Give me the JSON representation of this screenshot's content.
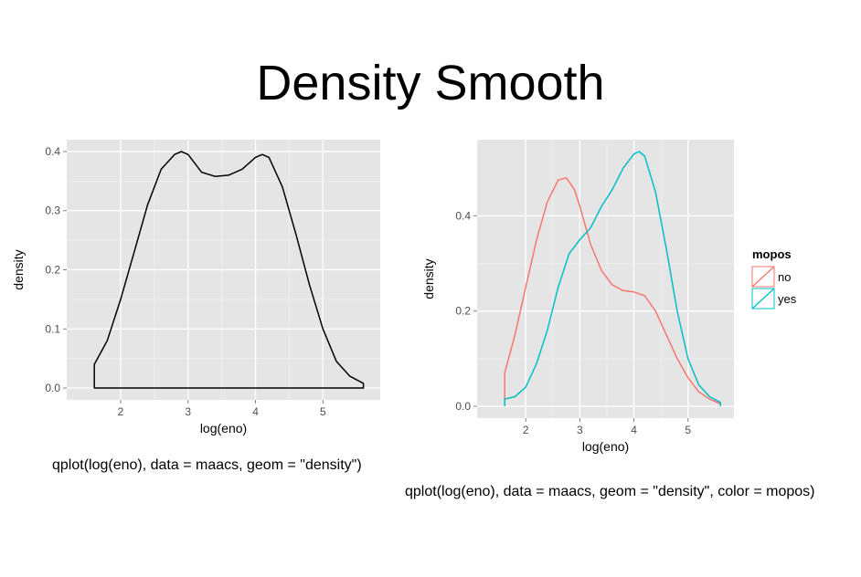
{
  "slide_title": "Density Smooth",
  "captions": {
    "left": "qplot(log(eno), data = maacs, geom = \"density\")",
    "right": "qplot(log(eno), data = maacs, geom = \"density\", color = mopos)"
  },
  "chart_data": [
    {
      "type": "area",
      "title": "",
      "xlabel": "log(eno)",
      "ylabel": "density",
      "xlim": [
        1.2,
        5.85
      ],
      "ylim": [
        -0.02,
        0.42
      ],
      "xticks": [
        "2",
        "3",
        "4",
        "5"
      ],
      "yticks": [
        "0.0",
        "0.1",
        "0.2",
        "0.3",
        "0.4"
      ],
      "grid": true,
      "series": [
        {
          "color": "#000000",
          "x": [
            1.61,
            1.61,
            1.8,
            2.0,
            2.2,
            2.4,
            2.6,
            2.8,
            2.9,
            3.0,
            3.2,
            3.4,
            3.6,
            3.8,
            4.0,
            4.1,
            4.2,
            4.4,
            4.6,
            4.8,
            5.0,
            5.2,
            5.4,
            5.6,
            5.6
          ],
          "y": [
            0.0,
            0.04,
            0.08,
            0.15,
            0.23,
            0.31,
            0.37,
            0.395,
            0.4,
            0.395,
            0.365,
            0.358,
            0.36,
            0.37,
            0.39,
            0.395,
            0.39,
            0.34,
            0.26,
            0.175,
            0.1,
            0.045,
            0.02,
            0.008,
            0.0
          ]
        }
      ]
    },
    {
      "type": "line",
      "title": "",
      "xlabel": "log(eno)",
      "ylabel": "density",
      "xlim": [
        1.1,
        5.85
      ],
      "ylim": [
        -0.025,
        0.56
      ],
      "xticks": [
        "2",
        "3",
        "4",
        "5"
      ],
      "yticks": [
        "0.0",
        "0.2",
        "0.4"
      ],
      "grid": true,
      "legend": {
        "title": "mopos",
        "position": "right"
      },
      "series": [
        {
          "name": "no",
          "color": "#F8766D",
          "x": [
            1.61,
            1.61,
            1.8,
            2.0,
            2.2,
            2.4,
            2.6,
            2.75,
            2.9,
            3.0,
            3.2,
            3.4,
            3.6,
            3.8,
            4.0,
            4.2,
            4.4,
            4.6,
            4.8,
            5.0,
            5.2,
            5.4,
            5.6,
            5.6
          ],
          "y": [
            0.0,
            0.07,
            0.15,
            0.25,
            0.35,
            0.43,
            0.475,
            0.48,
            0.455,
            0.42,
            0.34,
            0.285,
            0.255,
            0.243,
            0.24,
            0.232,
            0.2,
            0.15,
            0.1,
            0.06,
            0.03,
            0.015,
            0.005,
            0.0
          ]
        },
        {
          "name": "yes",
          "color": "#00BFC4",
          "x": [
            1.61,
            1.61,
            1.8,
            2.0,
            2.2,
            2.4,
            2.6,
            2.8,
            3.0,
            3.2,
            3.4,
            3.6,
            3.8,
            4.0,
            4.1,
            4.2,
            4.4,
            4.6,
            4.8,
            5.0,
            5.2,
            5.4,
            5.6,
            5.6
          ],
          "y": [
            0.0,
            0.015,
            0.02,
            0.04,
            0.09,
            0.16,
            0.25,
            0.32,
            0.35,
            0.375,
            0.42,
            0.455,
            0.5,
            0.53,
            0.535,
            0.525,
            0.45,
            0.33,
            0.2,
            0.1,
            0.045,
            0.02,
            0.008,
            0.0
          ]
        }
      ]
    }
  ]
}
